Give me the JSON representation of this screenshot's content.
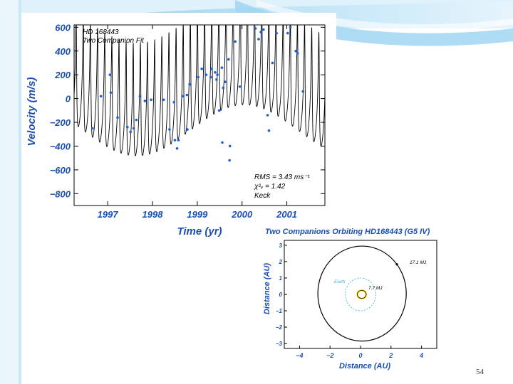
{
  "slide": {
    "page_number": "54"
  },
  "chart_data": [
    {
      "type": "line",
      "annotation_title": [
        "HD 168443",
        "Two Companion Fit"
      ],
      "xlabel": "Time  (yr)",
      "ylabel": "Velocity (m/s)",
      "xlim": [
        1996.25,
        2001.85
      ],
      "ylim": [
        -900,
        620
      ],
      "xticks": [
        "1997",
        "1998",
        "1999",
        "2000",
        "2001"
      ],
      "xtick_values": [
        1997,
        1998,
        1999,
        2000,
        2001
      ],
      "yticks": [
        "600",
        "400",
        "200",
        "0",
        "−200",
        "−400",
        "−600",
        "−800"
      ],
      "ytick_values": [
        600,
        400,
        200,
        0,
        -200,
        -400,
        -600,
        -800
      ],
      "stats": [
        "RMS = 3.43 ms⁻¹",
        "χ²ᵥ = 1.42",
        "Keck"
      ],
      "series": [
        {
          "kind": "fit",
          "color": "#000000",
          "inner_planet_period_yr": 0.1594,
          "inner_planet_amplitude_ms": 475,
          "inner_planet_eccentricity": 0.53,
          "outer_trend_amplitude_ms": 215,
          "outer_trend_period_yr": 4.8,
          "outer_trend_min_epoch": 1997.65,
          "offset_ms": 0
        },
        {
          "kind": "observations",
          "color": "#1f5fd0",
          "points": [
            [
              1996.66,
              -250
            ],
            [
              1996.85,
              20
            ],
            [
              1997.05,
              200
            ],
            [
              1997.07,
              50
            ],
            [
              1997.22,
              -160
            ],
            [
              1997.44,
              -240
            ],
            [
              1997.51,
              -280
            ],
            [
              1997.58,
              -250
            ],
            [
              1997.64,
              -180
            ],
            [
              1997.72,
              20
            ],
            [
              1997.83,
              -20
            ],
            [
              1997.97,
              -10
            ],
            [
              1998.25,
              -10
            ],
            [
              1998.38,
              -260
            ],
            [
              1998.48,
              -30
            ],
            [
              1998.5,
              -350
            ],
            [
              1998.55,
              -420
            ],
            [
              1998.58,
              -350
            ],
            [
              1998.67,
              20
            ],
            [
              1998.77,
              30
            ],
            [
              1998.78,
              -260
            ],
            [
              1998.83,
              120
            ],
            [
              1999.02,
              180
            ],
            [
              1999.1,
              250
            ],
            [
              1999.2,
              200
            ],
            [
              1999.3,
              180
            ],
            [
              1999.32,
              250
            ],
            [
              1999.4,
              220
            ],
            [
              1999.43,
              160
            ],
            [
              1999.45,
              200
            ],
            [
              1999.49,
              -100
            ],
            [
              1999.55,
              260
            ],
            [
              1999.56,
              -370
            ],
            [
              1999.58,
              90
            ],
            [
              1999.62,
              140
            ],
            [
              1999.7,
              330
            ],
            [
              1999.72,
              -520
            ],
            [
              1999.73,
              -400
            ],
            [
              1999.85,
              480
            ],
            [
              1999.95,
              100
            ],
            [
              2000.3,
              590
            ],
            [
              2000.37,
              500
            ],
            [
              2000.42,
              560
            ],
            [
              2000.48,
              580
            ],
            [
              2000.57,
              -140
            ],
            [
              2000.6,
              -270
            ],
            [
              2000.68,
              300
            ],
            [
              2000.77,
              550
            ],
            [
              2001.02,
              550
            ],
            [
              2001.08,
              600
            ],
            [
              2001.2,
              400
            ],
            [
              2001.24,
              380
            ],
            [
              2001.36,
              60
            ]
          ]
        }
      ]
    },
    {
      "type": "scatter",
      "title": "Two Companions Orbiting HD168443 (G5 IV)",
      "xlabel": "Distance (AU)",
      "ylabel": "Distance (AU)",
      "xlim": [
        -5,
        5
      ],
      "ylim": [
        -3.3,
        3.3
      ],
      "xticks": [
        "−4",
        "−2",
        "0",
        "2",
        "4"
      ],
      "xtick_values": [
        -4,
        -2,
        0,
        2,
        4
      ],
      "yticks": [
        "3",
        "2",
        "1",
        "0",
        "−1",
        "−2",
        "−3"
      ],
      "ytick_values": [
        3,
        2,
        1,
        0,
        -1,
        -2,
        -3
      ],
      "series": [
        {
          "name": "17.1 MJ",
          "kind": "orbit",
          "semimajor_axis_au": 2.9,
          "eccentricity": 0.2,
          "color": "#000000",
          "marker_angle_deg": 38
        },
        {
          "name": "Earth",
          "kind": "orbit",
          "semimajor_axis_au": 1.0,
          "eccentricity": 0.0,
          "color": "#3fb9d6",
          "dashed": true
        },
        {
          "name": "7.7 MJ",
          "kind": "orbit",
          "semimajor_axis_au": 0.29,
          "eccentricity": 0.53,
          "color": "#000000",
          "marker_color": "#ffcc00"
        }
      ],
      "labels": {
        "outer": "17.1 MJ",
        "earth": "Earth",
        "inner": "7.7 MJ"
      }
    }
  ]
}
